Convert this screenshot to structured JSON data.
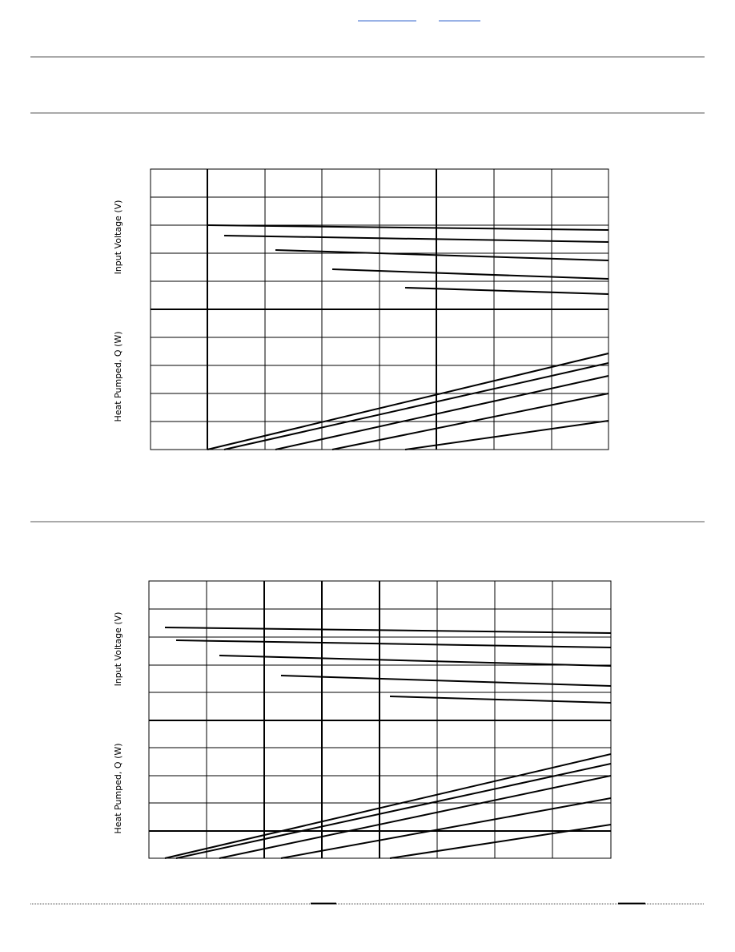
{
  "charts": [
    {
      "upper_axis_label": "Input Voltage (V)",
      "lower_axis_label": "Heat Pumped, Q (W)"
    },
    {
      "upper_axis_label": "Input Voltage (V)",
      "lower_axis_label": "Heat Pumped, Q (W)"
    }
  ]
}
